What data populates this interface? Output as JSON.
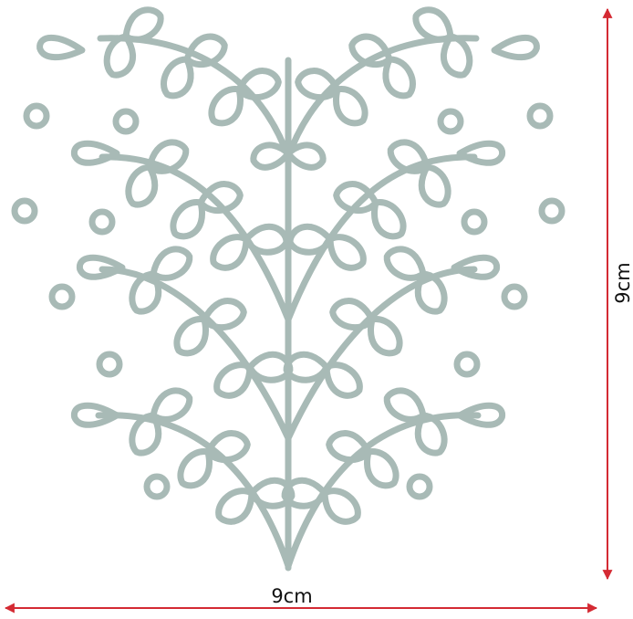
{
  "dimensions": {
    "width_label": "9cm",
    "height_label": "9cm"
  },
  "colors": {
    "motif": "#a8bab6",
    "arrow": "#d42a33",
    "background": "#ffffff"
  }
}
